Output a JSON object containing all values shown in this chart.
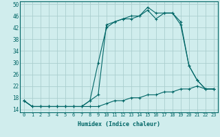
{
  "xlabel": "Humidex (Indice chaleur)",
  "background_color": "#d0eded",
  "grid_color": "#aacece",
  "line_color": "#006666",
  "xlim": [
    -0.5,
    23.5
  ],
  "ylim": [
    13,
    51
  ],
  "yticks": [
    14,
    18,
    22,
    26,
    30,
    34,
    38,
    42,
    46,
    50
  ],
  "xticks": [
    0,
    1,
    2,
    3,
    4,
    5,
    6,
    7,
    8,
    9,
    10,
    11,
    12,
    13,
    14,
    15,
    16,
    17,
    18,
    19,
    20,
    21,
    22,
    23
  ],
  "line1_x": [
    0,
    1,
    2,
    3,
    4,
    5,
    6,
    7,
    8,
    9,
    10,
    11,
    12,
    13,
    14,
    15,
    16,
    17,
    18,
    19,
    20,
    21,
    22,
    23
  ],
  "line1_y": [
    17,
    15,
    15,
    15,
    15,
    15,
    15,
    15,
    17,
    19,
    43,
    44,
    45,
    46,
    46,
    49,
    47,
    47,
    47,
    44,
    29,
    24,
    21,
    21
  ],
  "line2_x": [
    0,
    1,
    2,
    3,
    4,
    5,
    6,
    7,
    8,
    9,
    10,
    11,
    12,
    13,
    14,
    15,
    16,
    17,
    18,
    19,
    20,
    21,
    22,
    23
  ],
  "line2_y": [
    17,
    15,
    15,
    15,
    15,
    15,
    15,
    15,
    17,
    30,
    42,
    44,
    45,
    45,
    46,
    48,
    45,
    47,
    47,
    43,
    29,
    24,
    21,
    21
  ],
  "line3_x": [
    0,
    1,
    2,
    3,
    4,
    5,
    6,
    7,
    8,
    9,
    10,
    11,
    12,
    13,
    14,
    15,
    16,
    17,
    18,
    19,
    20,
    21,
    22,
    23
  ],
  "line3_y": [
    17,
    15,
    15,
    15,
    15,
    15,
    15,
    15,
    15,
    15,
    16,
    17,
    17,
    18,
    18,
    19,
    19,
    20,
    20,
    21,
    21,
    22,
    21,
    21
  ]
}
